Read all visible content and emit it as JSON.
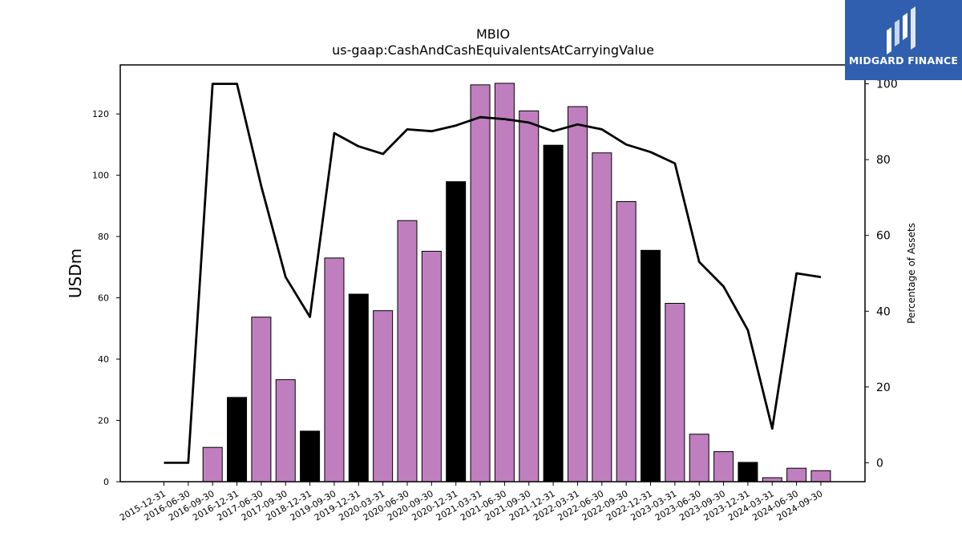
{
  "chart_data": {
    "type": "bar+line",
    "title": "MBIO",
    "subtitle": "us-gaap:CashAndCashEquivalentsAtCarryingValue",
    "ylabel": "USDm",
    "y2label": "Percentage of Assets",
    "ylim": [
      0,
      136
    ],
    "y2lim": [
      -5,
      105
    ],
    "yticks": [
      0,
      20,
      40,
      60,
      80,
      100,
      120
    ],
    "y2ticks": [
      0,
      20,
      40,
      60,
      80,
      100
    ],
    "categories": [
      "2015-12-31",
      "2016-06-30",
      "2016-09-30",
      "2016-12-31",
      "2017-06-30",
      "2017-09-30",
      "2018-12-31",
      "2019-09-30",
      "2019-12-31",
      "2020-03-31",
      "2020-06-30",
      "2020-09-30",
      "2020-12-31",
      "2021-03-31",
      "2021-06-30",
      "2021-09-30",
      "2021-12-31",
      "2022-03-31",
      "2022-06-30",
      "2022-09-30",
      "2022-12-31",
      "2023-03-31",
      "2023-06-30",
      "2023-09-30",
      "2023-12-31",
      "2024-03-31",
      "2024-06-30",
      "2024-09-30"
    ],
    "bars": [
      0,
      0,
      11.2,
      27.5,
      53.7,
      33.3,
      16.5,
      73.0,
      61.2,
      55.8,
      85.2,
      75.2,
      97.9,
      129.5,
      130.0,
      121.0,
      109.8,
      122.4,
      107.3,
      91.4,
      75.5,
      58.2,
      15.5,
      9.8,
      6.3,
      1.3,
      4.4,
      3.6
    ],
    "bar_colors": {
      "annual": "#000000",
      "interim": "#bf7fbf"
    },
    "annual_flags": [
      false,
      false,
      false,
      true,
      false,
      false,
      true,
      false,
      true,
      false,
      false,
      false,
      true,
      false,
      false,
      false,
      true,
      false,
      false,
      false,
      true,
      false,
      false,
      false,
      true,
      false,
      false,
      false
    ],
    "line_name": "Percentage of Assets",
    "line": [
      0,
      0,
      100,
      100,
      73,
      49,
      38.5,
      87,
      83.5,
      81.5,
      88,
      87.5,
      89,
      91.2,
      90.7,
      89.8,
      87.5,
      89.3,
      88,
      84,
      82,
      79,
      53,
      46.5,
      35,
      9,
      50,
      49
    ]
  },
  "logo": {
    "text": "MIDGARD FINANCE"
  }
}
